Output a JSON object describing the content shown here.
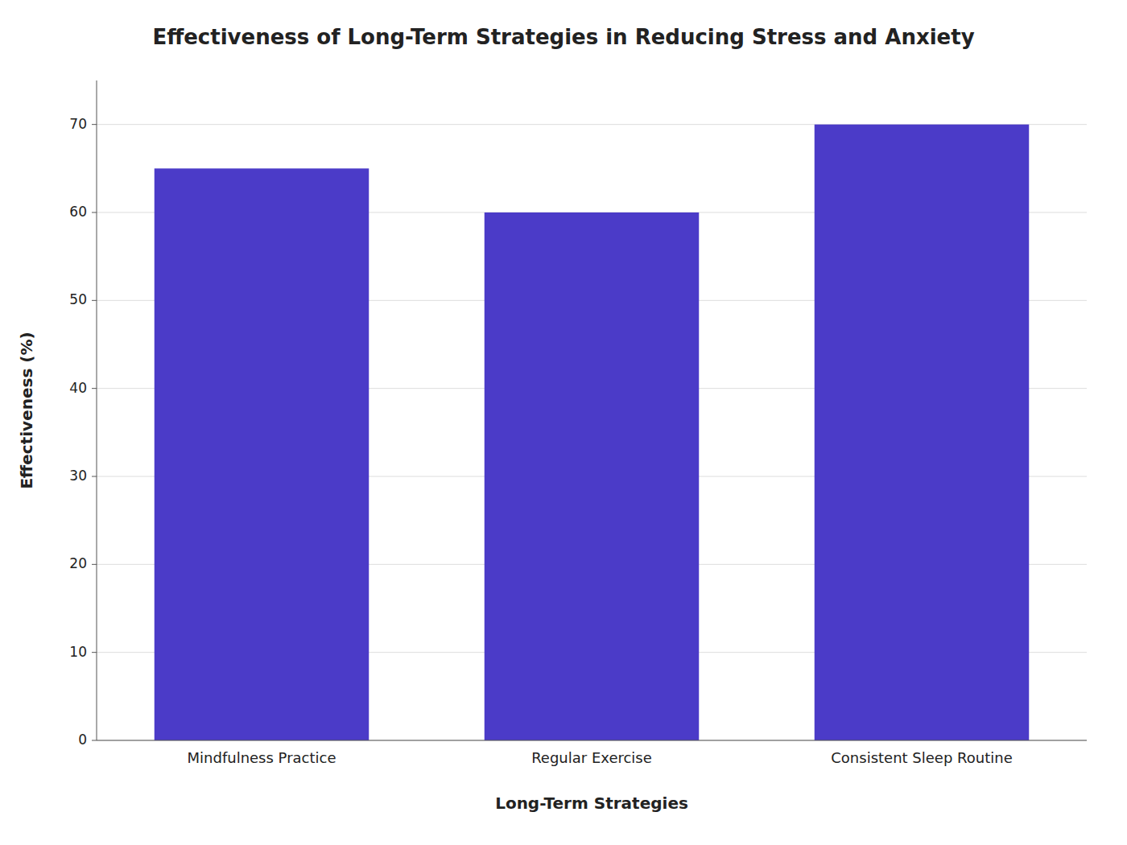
{
  "chart_data": {
    "type": "bar",
    "title": "Effectiveness of Long-Term Strategies in Reducing Stress and Anxiety",
    "categories": [
      "Mindfulness Practice",
      "Regular Exercise",
      "Consistent Sleep Routine"
    ],
    "values": [
      65,
      60,
      70
    ],
    "color": "#4B3BC8",
    "xlabel": "Long-Term Strategies",
    "ylabel": "Effectiveness (%)",
    "ylim": [
      0,
      75
    ],
    "yticks": [
      0,
      10,
      20,
      30,
      40,
      50,
      60,
      70
    ],
    "grid": true
  }
}
